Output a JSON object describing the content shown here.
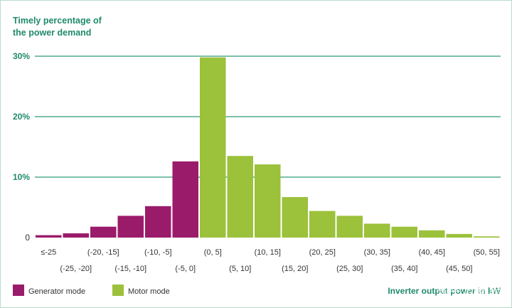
{
  "chart_data": {
    "type": "bar",
    "ylabel_lines": [
      "Timely percentage of",
      "the power demand"
    ],
    "xlabel": "Inverter output power in kW",
    "yticks": [
      {
        "value": 30,
        "label": "30%"
      },
      {
        "value": 20,
        "label": "20%"
      },
      {
        "value": 10,
        "label": "10%"
      },
      {
        "value": 0,
        "label": "0"
      }
    ],
    "ylim": [
      0,
      31
    ],
    "grid": true,
    "legend_placement": "bottom-left",
    "series": [
      {
        "name": "Generator mode",
        "color": "#9b1b6b"
      },
      {
        "name": "Motor mode",
        "color": "#9cc13b"
      }
    ],
    "categories": [
      "≤-25",
      "(-25, -20]",
      "(-20, -15]",
      "(-15, -10]",
      "(-10, -5]",
      "(-5, 0]",
      "(0, 5]",
      "(5, 10]",
      "(10, 15]",
      "(15, 20]",
      "(20, 25]",
      "(25, 30]",
      "(30, 35]",
      "(35, 40]",
      "(40, 45]",
      "(45, 50]",
      "(50, 55]"
    ],
    "values": [
      0.4,
      0.7,
      1.8,
      3.6,
      5.2,
      12.6,
      29.8,
      13.5,
      12.1,
      6.7,
      4.4,
      3.6,
      2.3,
      1.8,
      1.2,
      0.6,
      0.2
    ],
    "series_index": [
      0,
      0,
      0,
      0,
      0,
      0,
      1,
      1,
      1,
      1,
      1,
      1,
      1,
      1,
      1,
      1,
      1
    ]
  },
  "watermark": "知乎 @舞能",
  "colors": {
    "accent": "#1f8a6b",
    "grid": "#2e9a77"
  }
}
